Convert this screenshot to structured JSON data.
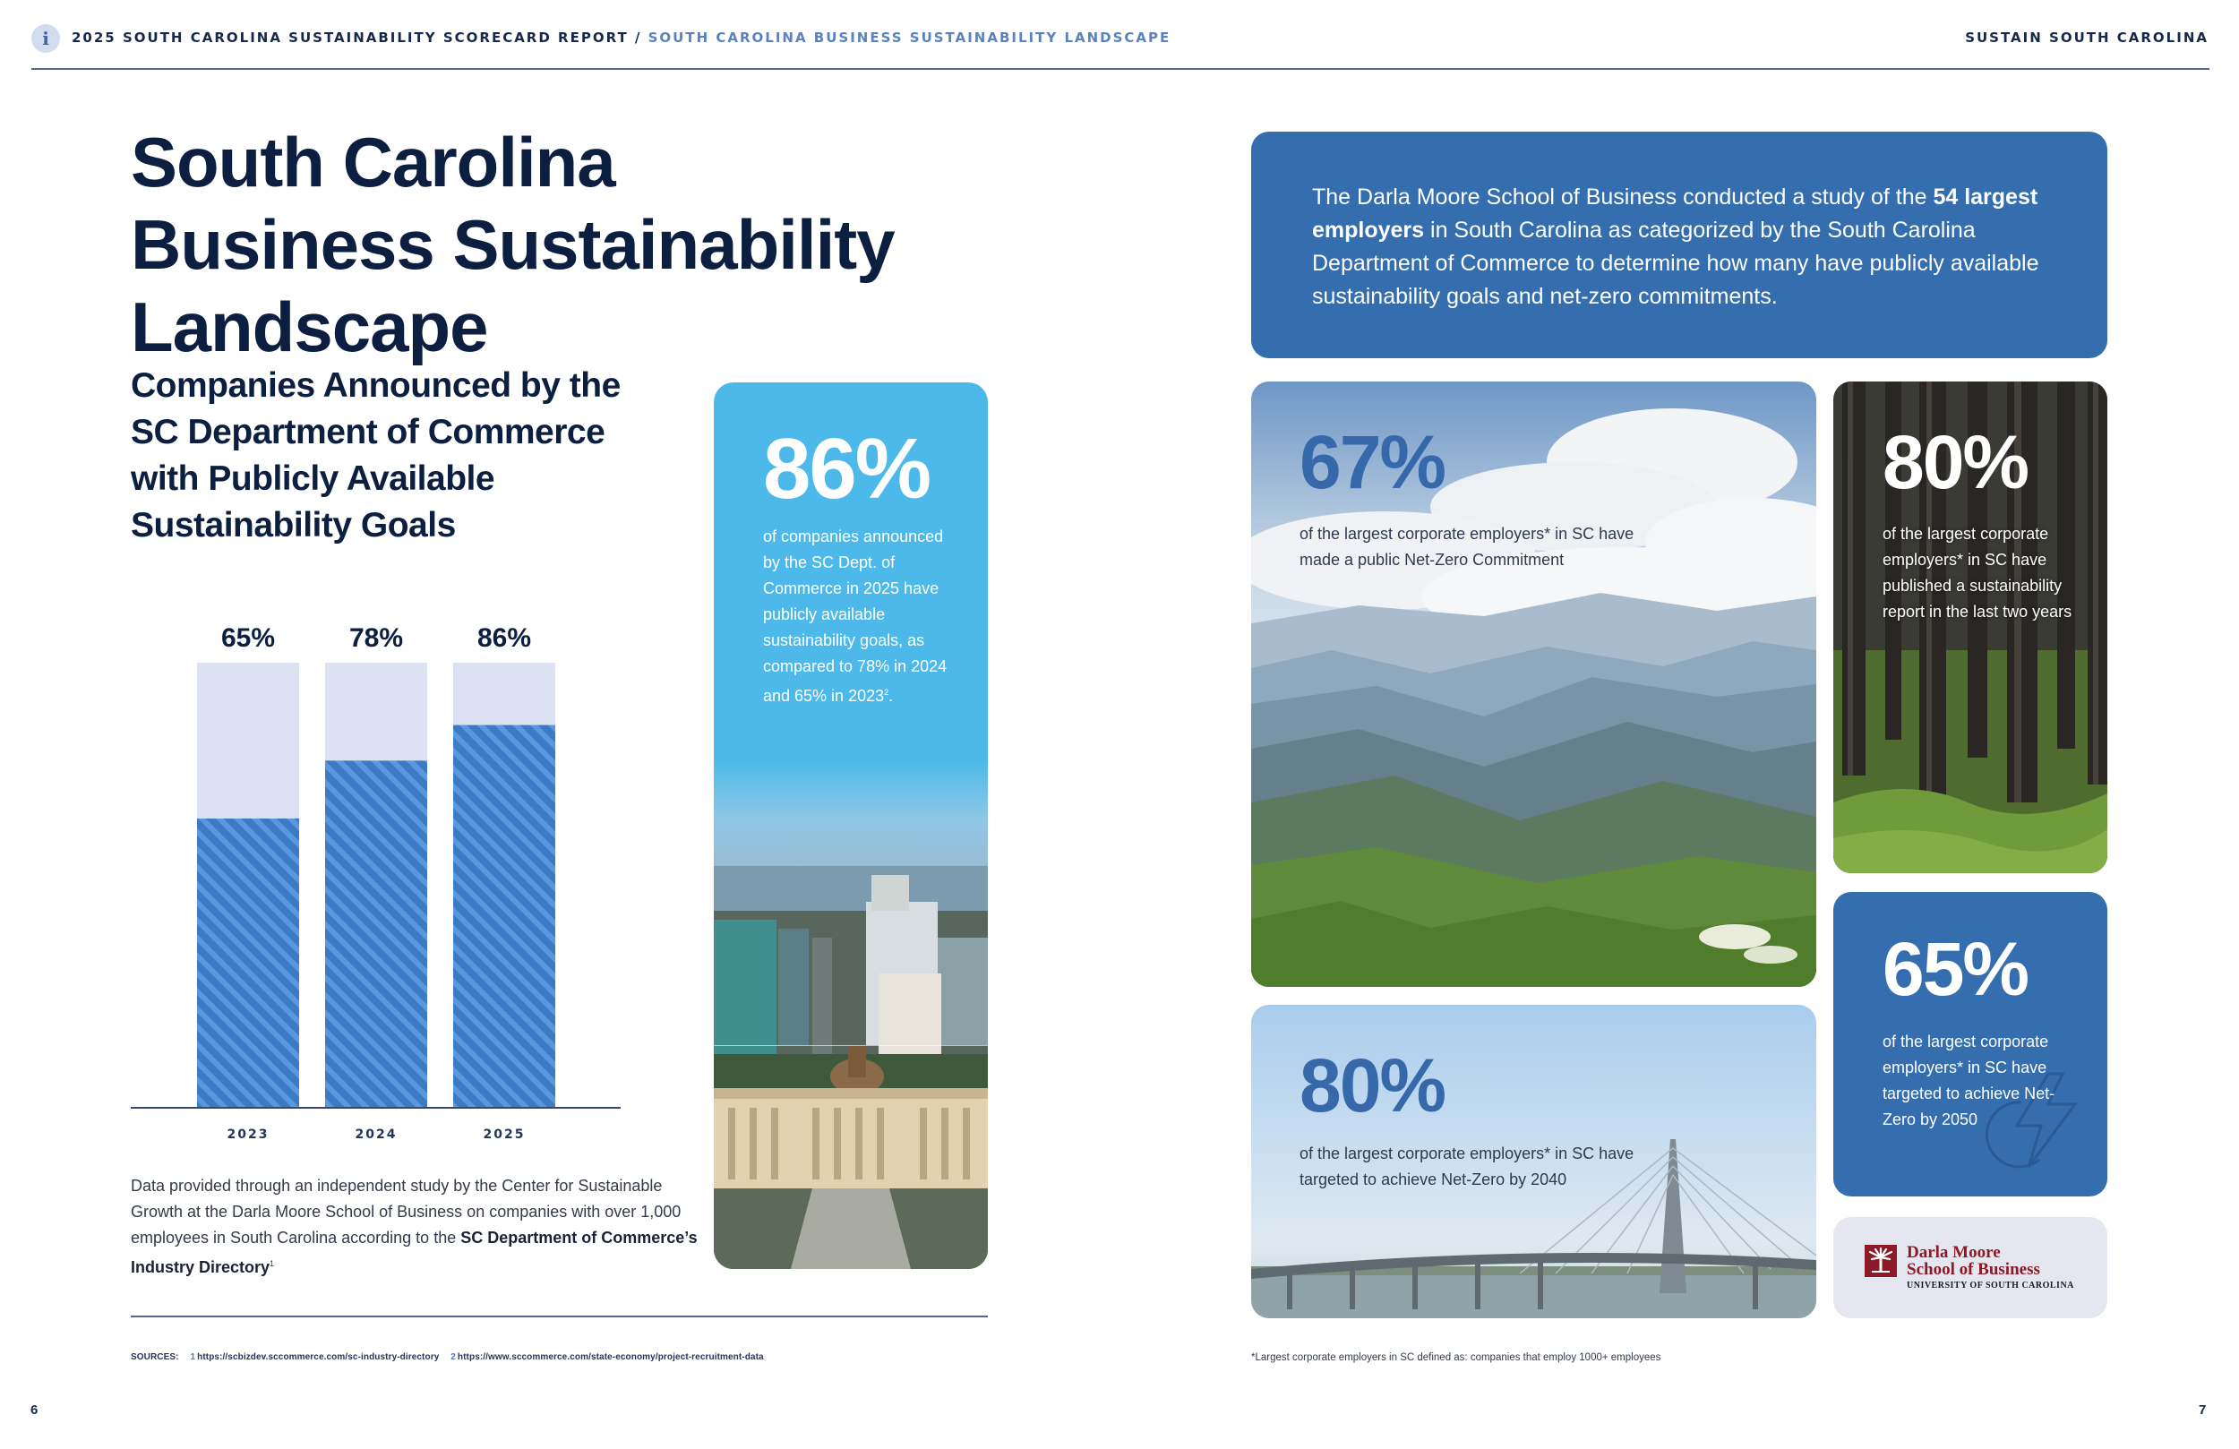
{
  "header": {
    "info_icon": "i",
    "breadcrumb_root": "2025 SOUTH CAROLINA SUSTAINABILITY SCORECARD REPORT",
    "breadcrumb_sep": " / ",
    "breadcrumb_current": "SOUTH CAROLINA BUSINESS SUSTAINABILITY LANDSCAPE",
    "brand": "SUSTAIN SOUTH CAROLINA"
  },
  "left_page": {
    "title": "South Carolina Business Sustainability Landscape",
    "chart_title": "Companies Announced by the SC Department of Commerce with Publicly Available Sustainability Goals",
    "note_prefix": "Data provided through an independent study by the Center for Sustainable Growth at the Darla Moore School of Business on companies with over 1,000 employees in South Carolina according to the ",
    "note_bold": "SC Department of Commerce’s Industry Directory",
    "note_sup": "1",
    "highlight_card": {
      "value": "86%",
      "text": "of companies announced by the SC Dept. of Commerce in 2025 have publicly available sustainability goals, as compared to 78% in 2024 and 65% in 2023",
      "sup": "2",
      "end": ".",
      "image": "columbia-skyline-statehouse"
    },
    "sources_label": "SOURCES:",
    "sources": [
      {
        "n": "1",
        "url": "https://scbizdev.sccommerce.com/sc-industry-directory"
      },
      {
        "n": "2",
        "url": "https://www.sccommerce.com/state-economy/project-recruitment-data"
      }
    ],
    "page_number": "6"
  },
  "chart_data": {
    "type": "bar",
    "categories": [
      "2023",
      "2024",
      "2025"
    ],
    "values": [
      65,
      78,
      86
    ],
    "value_labels": [
      "65%",
      "78%",
      "86%"
    ],
    "ylim": [
      0,
      100
    ],
    "title": "Companies Announced by the SC Department of Commerce with Publicly Available Sustainability Goals",
    "xlabel": "",
    "ylabel": "",
    "colors": {
      "fill": "#3b7bc6",
      "stripe": "#5b97dc",
      "remainder": "#dde2f2",
      "axis": "#33496e"
    }
  },
  "right_page": {
    "intro_1": "The Darla Moore School of Business conducted a study of the ",
    "intro_bold": "54 largest employers",
    "intro_2": " in South Carolina as categorized by the South Carolina Department of Commerce to determine how many have publicly available sustainability goals and net-zero commitments.",
    "stats": [
      {
        "value": "67%",
        "text": "of the largest corporate employers* in SC have made a public Net-Zero Commitment",
        "image": "mountain-valley"
      },
      {
        "value": "80%",
        "text": "of the largest corporate employers* in SC have published a sustainability report in the last two years",
        "image": "pine-forest"
      },
      {
        "value": "80%",
        "text": "of the largest corporate employers* in SC have targeted to achieve Net-Zero by 2040",
        "image": "ravenel-bridge"
      },
      {
        "value": "65%",
        "text": "of the largest corporate employers* in SC have targeted to achieve Net-Zero by 2050",
        "icon": "lightning-bolt-icon"
      }
    ],
    "logo": {
      "line1": "Darla Moore",
      "line2": "School of Business",
      "line3": "UNIVERSITY OF SOUTH CAROLINA"
    },
    "footnote": "*Largest corporate employers in SC defined as: companies that employ 1000+ employees",
    "page_number": "7"
  },
  "colors": {
    "navy": "#0d1f40",
    "accent_blue": "#346eae",
    "sky_blue": "#4cb9ea",
    "stat_blue": "#3768aa",
    "garnet": "#8c1a26"
  }
}
